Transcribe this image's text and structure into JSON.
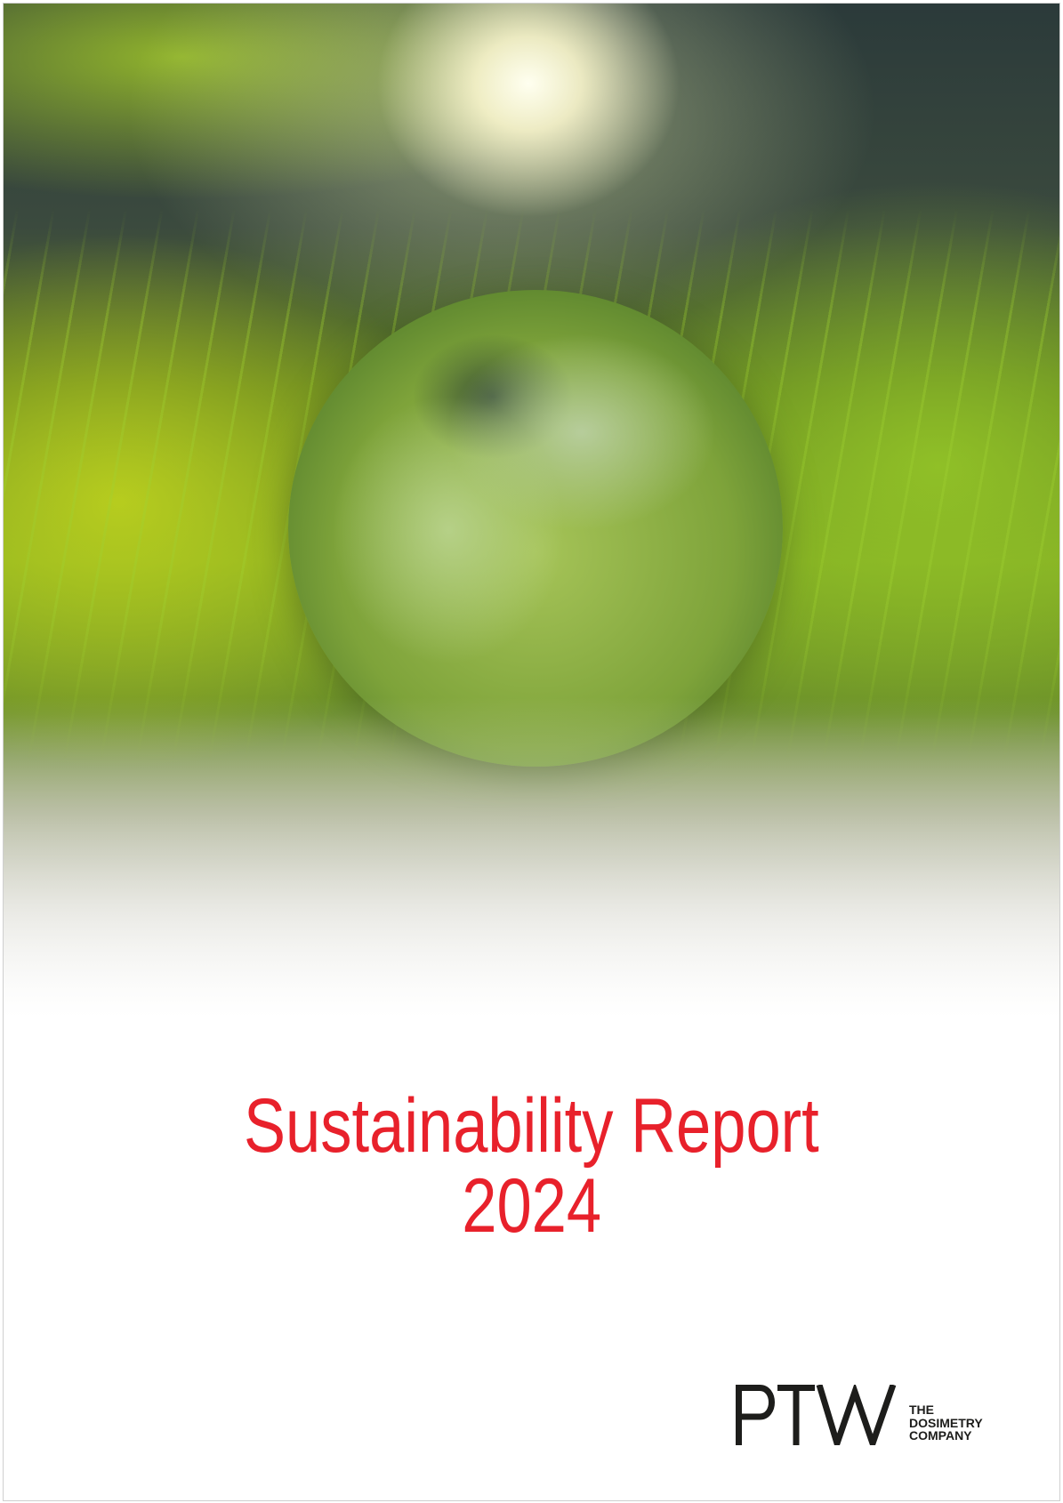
{
  "cover": {
    "title_line1": "Sustainability Report",
    "title_line2": "2024",
    "title_color": "#e8212b"
  },
  "logo": {
    "wordmark": "PTW",
    "tagline": [
      "THE",
      "DOSIMETRY",
      "COMPANY"
    ],
    "accent_color": "#e8212b"
  }
}
